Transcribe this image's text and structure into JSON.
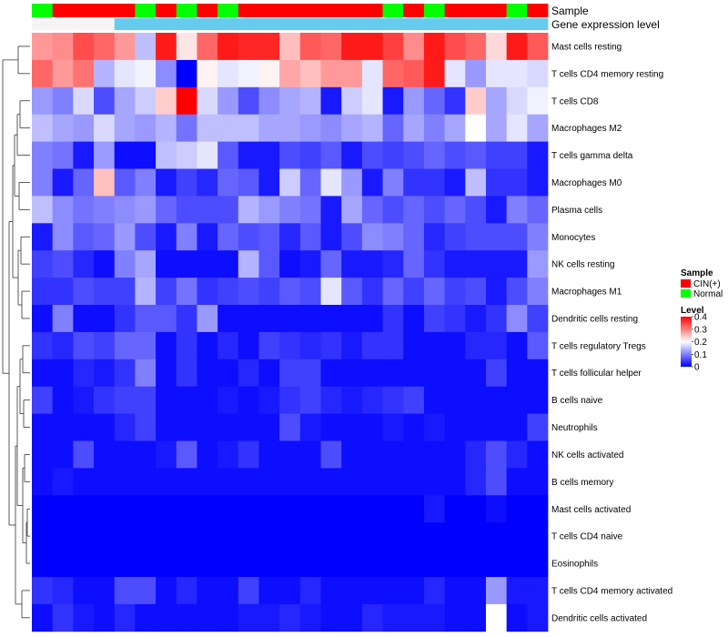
{
  "chart_data": {
    "type": "heatmap",
    "title": "",
    "color_scale": {
      "title": "Level",
      "min": 0,
      "max": 0.4,
      "ticks": [
        "0",
        "0.1",
        "0.2",
        "0.3",
        "0.4"
      ],
      "tick_values": [
        0,
        0.1,
        0.2,
        0.3,
        0.4
      ],
      "low_color": "#0000ff",
      "mid_color": "#ffffff",
      "high_color": "#ff0000"
    },
    "annotation_tracks": [
      {
        "name": "Sample",
        "values": [
          "Normal",
          "CIN(+)",
          "CIN(+)",
          "CIN(+)",
          "CIN(+)",
          "Normal",
          "CIN(+)",
          "Normal",
          "CIN(+)",
          "Normal",
          "CIN(+)",
          "CIN(+)",
          "CIN(+)",
          "CIN(+)",
          "CIN(+)",
          "CIN(+)",
          "CIN(+)",
          "Normal",
          "CIN(+)",
          "Normal",
          "CIN(+)",
          "CIN(+)",
          "CIN(+)",
          "Normal",
          "CIN(+)"
        ]
      },
      {
        "name": "Gene expression level",
        "values": [
          "Low",
          "Low",
          "Low",
          "Low",
          "High",
          "High",
          "High",
          "High",
          "High",
          "High",
          "High",
          "High",
          "High",
          "High",
          "High",
          "High",
          "High",
          "High",
          "High",
          "High",
          "High",
          "High",
          "High",
          "High",
          "High"
        ]
      }
    ],
    "legend": {
      "title": "Sample",
      "entries": [
        {
          "label": "CIN(+)",
          "color": "#ff0000"
        },
        {
          "label": "Normal",
          "color": "#00ff00"
        }
      ]
    },
    "annotation_colors": {
      "Sample": {
        "CIN(+)": "#ff0000",
        "Normal": "#00ff00"
      },
      "Gene expression level": {
        "Low": "#f5f5f5",
        "High": "#66ccee"
      }
    },
    "rows": [
      "Mast cells resting",
      "T cells CD4 memory resting",
      "T cells CD8",
      "Macrophages M2",
      "T cells gamma delta",
      "Macrophages M0",
      "Plasma cells",
      "Monocytes",
      "NK cells resting",
      "Macrophages M1",
      "Dendritic cells resting",
      "T cells regulatory  Tregs",
      "T cells follicular helper",
      "B cells naive",
      "Neutrophils",
      "NK cells activated",
      "B cells memory",
      "Mast cells activated",
      "T cells CD4 naive",
      "Eosinophils",
      "T cells CD4 memory activated",
      "Dendritic cells activated"
    ],
    "values": [
      [
        0.28,
        0.29,
        0.34,
        0.32,
        0.28,
        0.15,
        0.38,
        0.22,
        0.32,
        0.38,
        0.37,
        0.37,
        0.25,
        0.33,
        0.32,
        0.38,
        0.38,
        0.35,
        0.29,
        0.38,
        0.34,
        0.32,
        0.23,
        0.38,
        0.33
      ],
      [
        0.32,
        0.28,
        0.31,
        0.14,
        0.18,
        0.19,
        0.11,
        0.0,
        0.21,
        0.18,
        0.19,
        0.21,
        0.27,
        0.25,
        0.28,
        0.28,
        0.18,
        0.32,
        0.33,
        0.38,
        0.18,
        0.12,
        0.18,
        0.18,
        0.17
      ],
      [
        0.12,
        0.1,
        0.17,
        0.06,
        0.13,
        0.16,
        0.24,
        0.4,
        0.17,
        0.12,
        0.06,
        0.11,
        0.13,
        0.14,
        0.02,
        0.16,
        0.18,
        0.02,
        0.12,
        0.08,
        0.04,
        0.24,
        0.13,
        0.17,
        0.19
      ],
      [
        0.15,
        0.13,
        0.12,
        0.17,
        0.13,
        0.12,
        0.14,
        0.09,
        0.15,
        0.15,
        0.15,
        0.13,
        0.13,
        0.12,
        0.11,
        0.13,
        0.14,
        0.08,
        0.13,
        0.1,
        0.13,
        0.2,
        0.13,
        0.18,
        0.13
      ],
      [
        0.1,
        0.09,
        0.02,
        0.12,
        0.01,
        0.01,
        0.15,
        0.16,
        0.18,
        0.07,
        0.02,
        0.02,
        0.06,
        0.05,
        0.07,
        0.02,
        0.06,
        0.05,
        0.06,
        0.08,
        0.06,
        0.07,
        0.05,
        0.05,
        0.02
      ],
      [
        0.1,
        0.02,
        0.08,
        0.25,
        0.07,
        0.1,
        0.02,
        0.05,
        0.03,
        0.08,
        0.07,
        0.02,
        0.16,
        0.08,
        0.18,
        0.12,
        0.02,
        0.1,
        0.04,
        0.04,
        0.02,
        0.15,
        0.04,
        0.04,
        0.02
      ],
      [
        0.15,
        0.11,
        0.09,
        0.1,
        0.11,
        0.12,
        0.08,
        0.06,
        0.06,
        0.06,
        0.14,
        0.12,
        0.1,
        0.09,
        0.02,
        0.13,
        0.08,
        0.06,
        0.08,
        0.06,
        0.08,
        0.06,
        0.02,
        0.1,
        0.08
      ],
      [
        0.02,
        0.11,
        0.07,
        0.08,
        0.12,
        0.06,
        0.02,
        0.1,
        0.02,
        0.08,
        0.06,
        0.07,
        0.03,
        0.07,
        0.02,
        0.06,
        0.11,
        0.1,
        0.08,
        0.03,
        0.05,
        0.06,
        0.06,
        0.06,
        0.1
      ],
      [
        0.05,
        0.06,
        0.03,
        0.01,
        0.1,
        0.13,
        0.01,
        0.01,
        0.01,
        0.01,
        0.14,
        0.07,
        0.01,
        0.02,
        0.08,
        0.02,
        0.02,
        0.03,
        0.08,
        0.04,
        0.02,
        0.02,
        0.02,
        0.02,
        0.12
      ],
      [
        0.04,
        0.04,
        0.06,
        0.05,
        0.05,
        0.14,
        0.05,
        0.09,
        0.04,
        0.05,
        0.06,
        0.05,
        0.07,
        0.06,
        0.18,
        0.07,
        0.04,
        0.08,
        0.05,
        0.08,
        0.05,
        0.06,
        0.02,
        0.06,
        0.1
      ],
      [
        0.01,
        0.1,
        0.01,
        0.01,
        0.04,
        0.07,
        0.07,
        0.04,
        0.12,
        0.01,
        0.01,
        0.01,
        0.01,
        0.01,
        0.01,
        0.01,
        0.01,
        0.04,
        0.01,
        0.05,
        0.04,
        0.02,
        0.04,
        0.11,
        0.05
      ],
      [
        0.04,
        0.03,
        0.06,
        0.05,
        0.08,
        0.08,
        0.01,
        0.04,
        0.01,
        0.03,
        0.01,
        0.05,
        0.04,
        0.03,
        0.04,
        0.02,
        0.04,
        0.04,
        0.01,
        0.01,
        0.01,
        0.03,
        0.03,
        0.01,
        0.07
      ],
      [
        0.01,
        0.01,
        0.03,
        0.02,
        0.04,
        0.1,
        0.01,
        0.04,
        0.01,
        0.01,
        0.03,
        0.01,
        0.05,
        0.05,
        0.01,
        0.01,
        0.01,
        0.01,
        0.01,
        0.01,
        0.01,
        0.01,
        0.05,
        0.01,
        0.01
      ],
      [
        0.05,
        0.01,
        0.02,
        0.04,
        0.05,
        0.05,
        0.01,
        0.01,
        0.01,
        0.02,
        0.01,
        0.02,
        0.04,
        0.05,
        0.03,
        0.02,
        0.03,
        0.04,
        0.05,
        0.01,
        0.01,
        0.01,
        0.01,
        0.01,
        0.01
      ],
      [
        0.01,
        0.01,
        0.01,
        0.01,
        0.03,
        0.05,
        0.01,
        0.01,
        0.01,
        0.01,
        0.01,
        0.01,
        0.06,
        0.02,
        0.01,
        0.01,
        0.01,
        0.02,
        0.01,
        0.02,
        0.01,
        0.01,
        0.01,
        0.01,
        0.05
      ],
      [
        0.01,
        0.01,
        0.06,
        0.01,
        0.01,
        0.01,
        0.02,
        0.07,
        0.01,
        0.02,
        0.04,
        0.01,
        0.01,
        0.01,
        0.06,
        0.01,
        0.01,
        0.01,
        0.01,
        0.01,
        0.01,
        0.03,
        0.06,
        0.03,
        0.01
      ],
      [
        0.01,
        0.02,
        0.01,
        0.01,
        0.01,
        0.01,
        0.01,
        0.01,
        0.01,
        0.01,
        0.01,
        0.01,
        0.01,
        0.01,
        0.01,
        0.01,
        0.01,
        0.01,
        0.01,
        0.01,
        0.01,
        0.03,
        0.06,
        0.01,
        0.01
      ],
      [
        0.0,
        0.0,
        0.0,
        0.0,
        0.0,
        0.0,
        0.0,
        0.0,
        0.0,
        0.0,
        0.0,
        0.0,
        0.0,
        0.0,
        0.0,
        0.0,
        0.0,
        0.0,
        0.0,
        0.02,
        0.0,
        0.0,
        0.01,
        0.0,
        0.0
      ],
      [
        0.0,
        0.0,
        0.0,
        0.0,
        0.0,
        0.0,
        0.0,
        0.0,
        0.0,
        0.0,
        0.0,
        0.0,
        0.0,
        0.0,
        0.0,
        0.0,
        0.0,
        0.0,
        0.0,
        0.0,
        0.0,
        0.0,
        0.0,
        0.0,
        0.0
      ],
      [
        0.0,
        0.0,
        0.0,
        0.0,
        0.0,
        0.0,
        0.0,
        0.0,
        0.0,
        0.0,
        0.0,
        0.0,
        0.0,
        0.0,
        0.0,
        0.0,
        0.0,
        0.0,
        0.0,
        0.0,
        0.0,
        0.0,
        0.0,
        0.0,
        0.0
      ],
      [
        0.04,
        0.03,
        0.01,
        0.01,
        0.06,
        0.06,
        0.01,
        0.03,
        0.01,
        0.01,
        0.05,
        0.01,
        0.01,
        0.03,
        0.01,
        0.01,
        0.01,
        0.01,
        0.01,
        0.03,
        0.01,
        0.01,
        0.12,
        0.02,
        0.02
      ],
      [
        0.01,
        0.04,
        0.02,
        0.01,
        0.03,
        0.01,
        0.01,
        0.01,
        0.01,
        0.01,
        0.02,
        0.02,
        0.03,
        0.02,
        0.01,
        0.01,
        0.03,
        0.02,
        0.02,
        0.02,
        0.01,
        0.01,
        0.2,
        0.01,
        0.02
      ]
    ]
  }
}
